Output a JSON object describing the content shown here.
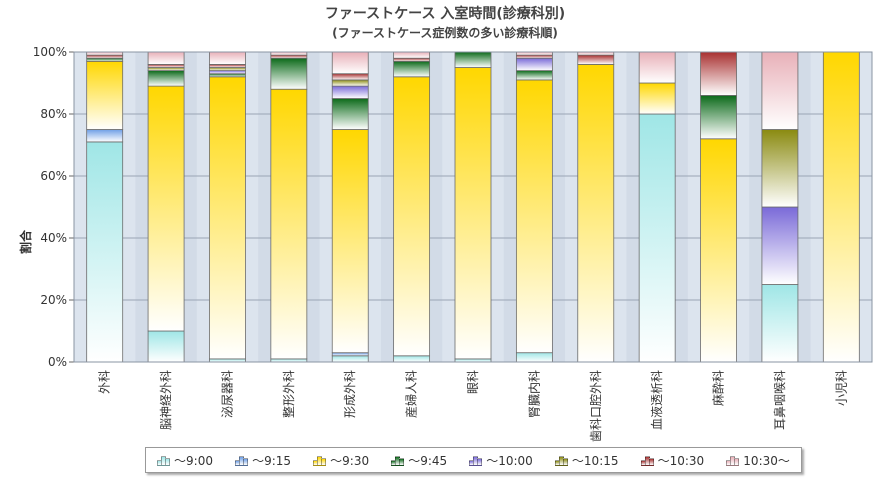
{
  "chart_data": {
    "type": "bar",
    "stacked": true,
    "title": "ファーストケース 入室時間(診療科別)",
    "subtitle": "(ファーストケース症例数の多い診療科順)",
    "ylabel": "割合",
    "ylim": [
      0,
      100
    ],
    "yticks": [
      "0%",
      "20%",
      "40%",
      "60%",
      "80%",
      "100%"
    ],
    "grid": true,
    "legend_position": "bottom",
    "categories": [
      "外科",
      "脳神経外科",
      "泌尿器科",
      "整形外科",
      "形成外科",
      "産婦人科",
      "眼科",
      "腎臓内科",
      "歯科口腔外科",
      "血液透析科",
      "麻酔科",
      "耳鼻咽喉科",
      "小児科"
    ],
    "series": [
      {
        "name": "〜9:00",
        "color": "#9fe6e6",
        "values": [
          71,
          10,
          1,
          1,
          2,
          2,
          1,
          3,
          0,
          80,
          0,
          25,
          0
        ]
      },
      {
        "name": "〜9:15",
        "color": "#6f9fe6",
        "values": [
          4,
          0,
          0,
          0,
          1,
          0,
          0,
          0,
          0,
          0,
          0,
          0,
          0
        ]
      },
      {
        "name": "〜9:30",
        "color": "#ffd700",
        "values": [
          22,
          79,
          91,
          87,
          72,
          90,
          94,
          88,
          96,
          10,
          72,
          0,
          100
        ]
      },
      {
        "name": "〜9:45",
        "color": "#0c6a1a",
        "values": [
          1,
          5,
          1,
          10,
          10,
          5,
          5,
          3,
          0,
          0,
          14,
          0,
          0
        ]
      },
      {
        "name": "〜10:00",
        "color": "#7a6ad8",
        "values": [
          0,
          0,
          1,
          0,
          4,
          0,
          0,
          4,
          0,
          0,
          0,
          25,
          0
        ]
      },
      {
        "name": "〜10:15",
        "color": "#8a8a10",
        "values": [
          0,
          1,
          1,
          0,
          2,
          0,
          0,
          0,
          0,
          0,
          0,
          25,
          0
        ]
      },
      {
        "name": "〜10:30",
        "color": "#a83030",
        "values": [
          1,
          1,
          1,
          1,
          2,
          1,
          0,
          1,
          3,
          0,
          14,
          0,
          0
        ]
      },
      {
        "name": "10:30〜",
        "color": "#e8b0b8",
        "values": [
          1,
          4,
          4,
          1,
          7,
          2,
          0,
          1,
          1,
          10,
          0,
          25,
          0
        ]
      }
    ]
  }
}
